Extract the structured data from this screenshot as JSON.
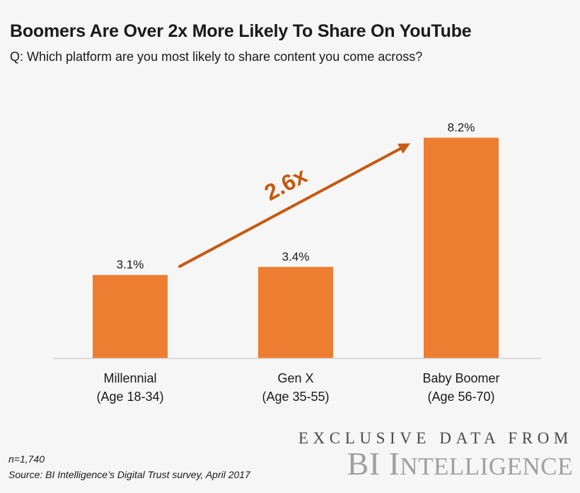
{
  "header": {
    "title": "Boomers Are Over 2x More Likely To Share On YouTube",
    "subtitle": "Q: Which platform are you most likely to share content you come across?"
  },
  "chart_data": {
    "type": "bar",
    "title": "Boomers Are Over 2x More Likely To Share On YouTube",
    "subtitle": "Q: Which platform are you most likely to share content you come across?",
    "categories": [
      [
        "Millennial",
        "(Age 18-34)"
      ],
      [
        "Gen X",
        "(Age 35-55)"
      ],
      [
        "Baby Boomer",
        "(Age 56-70)"
      ]
    ],
    "values": [
      3.1,
      3.4,
      8.2
    ],
    "data_labels": [
      "3.1%",
      "3.4%",
      "8.2%"
    ],
    "ylim": [
      0,
      10
    ],
    "grid": false,
    "bar_color": "#ed7d31",
    "annotation": {
      "text": "2.6x",
      "color": "#c55a11",
      "from_category": 0,
      "to_category": 2
    }
  },
  "footer": {
    "sample": "n=1,740",
    "source": "Source: BI Intelligence’s Digital Trust survey, April 2017"
  },
  "brand": {
    "line1": "EXCLUSIVE DATA FROM",
    "line2_a": "BI I",
    "line2_b": "NTELLIGENCE"
  }
}
